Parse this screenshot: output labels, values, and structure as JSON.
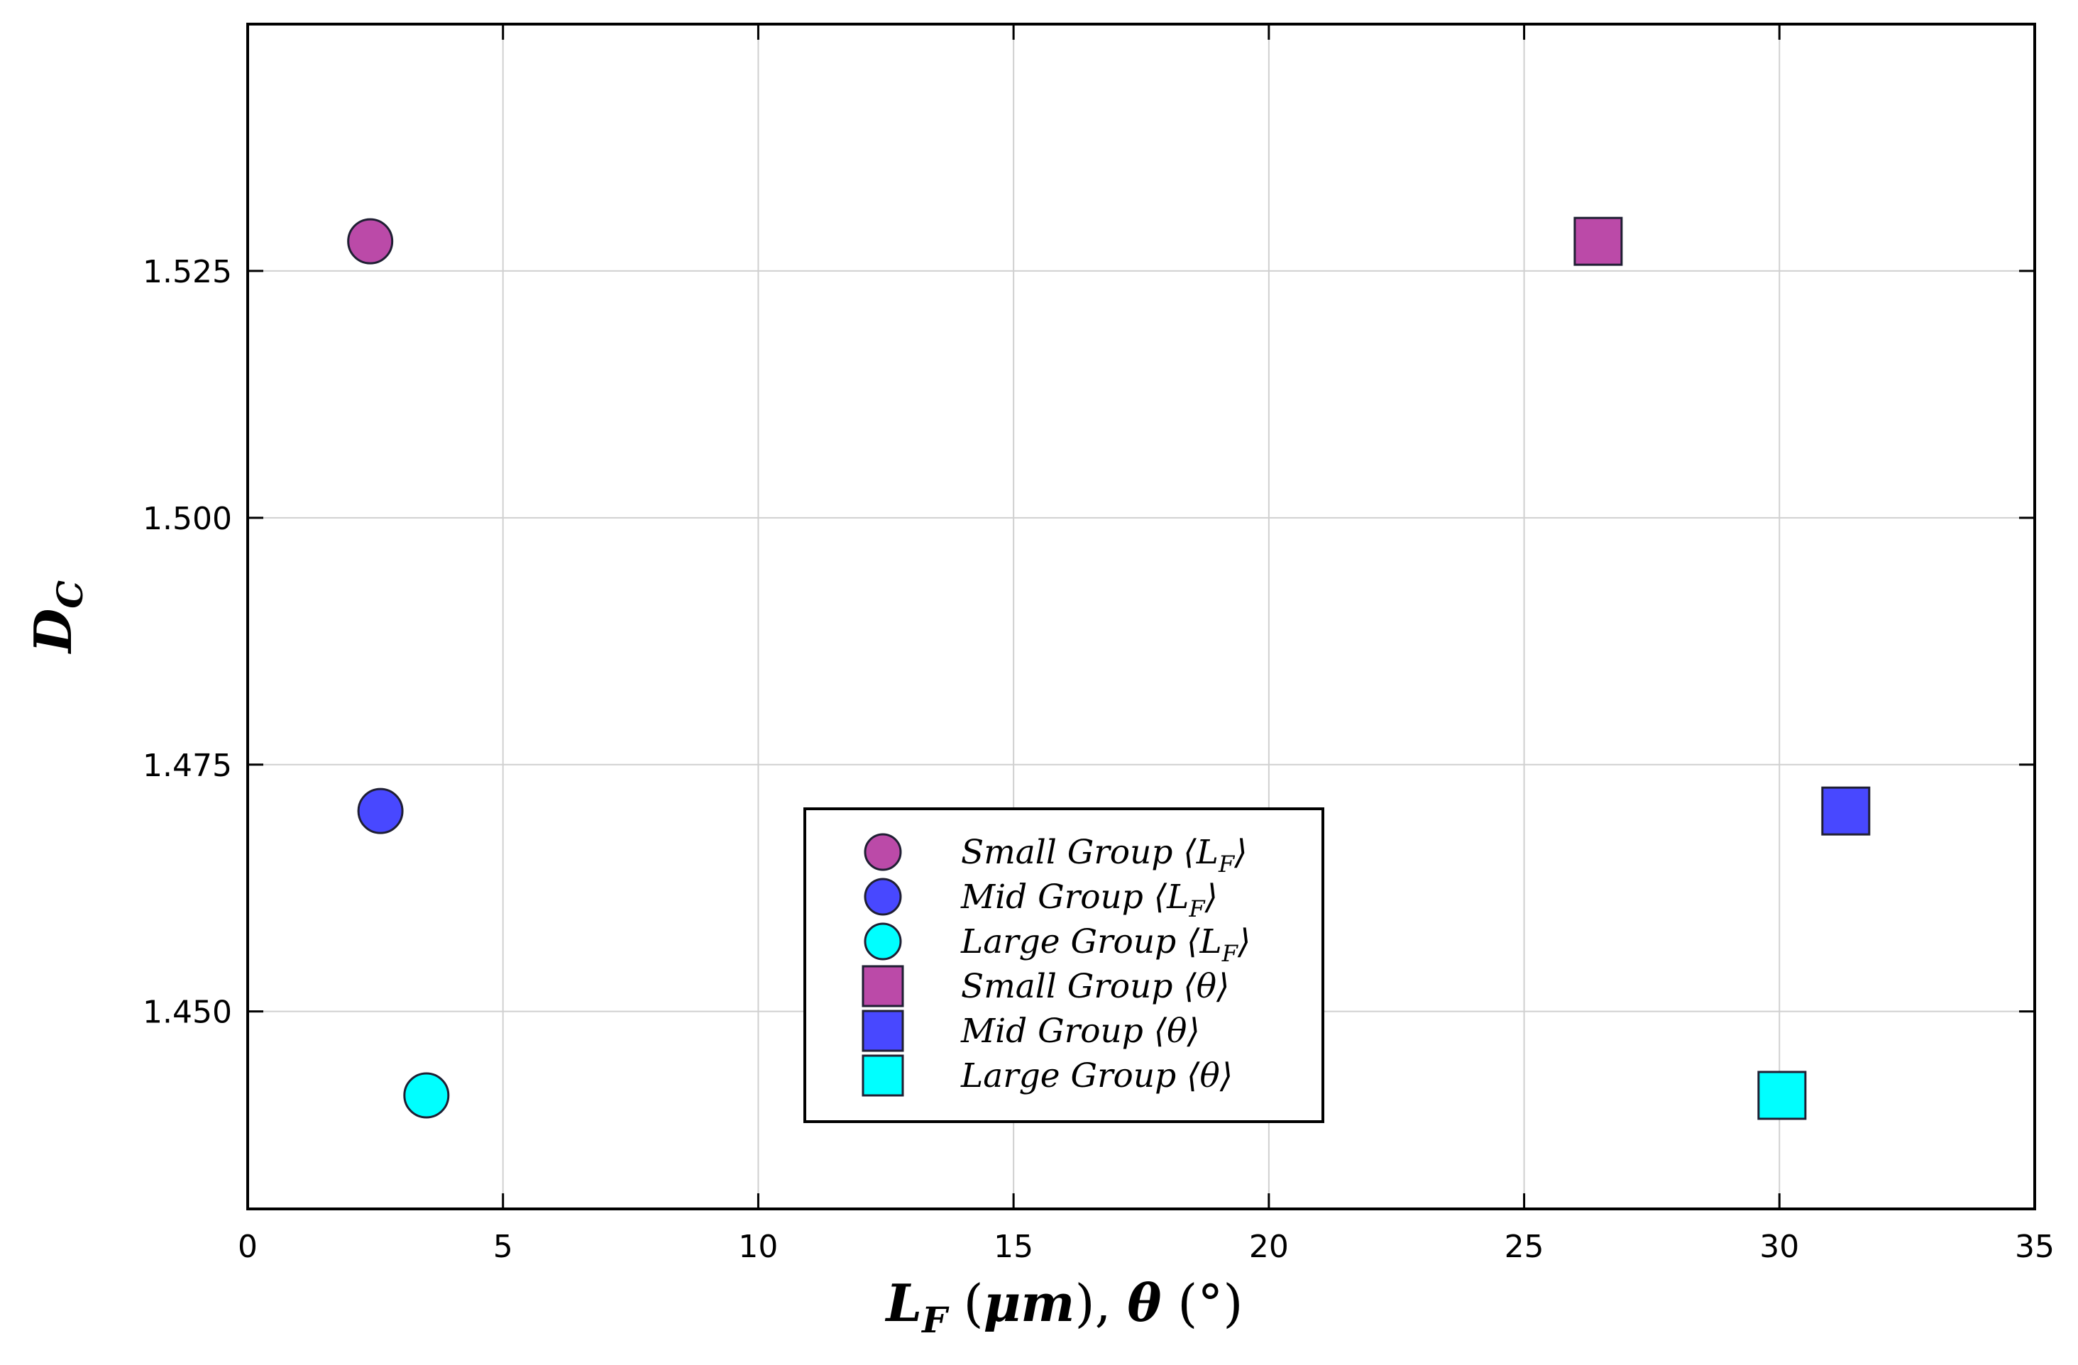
{
  "chart_data": {
    "type": "scatter",
    "title": "",
    "xlabel": "L_F (μm),   θ (°)",
    "ylabel": "D_C",
    "xlim": [
      0,
      35
    ],
    "ylim": [
      1.43,
      1.55
    ],
    "x_ticks": [
      0,
      5,
      10,
      15,
      20,
      25,
      30,
      35
    ],
    "y_ticks": [
      1.45,
      1.475,
      1.5,
      1.525
    ],
    "x_tick_labels": [
      "0",
      "5",
      "10",
      "15",
      "20",
      "25",
      "30",
      "35"
    ],
    "y_tick_labels": [
      "1.450",
      "1.475",
      "1.500",
      "1.525"
    ],
    "grid": true,
    "legend_position": "bottom-center",
    "series": [
      {
        "name": "Small Group",
        "stat": "L_F",
        "marker": "circle",
        "color": "#bb4aa8",
        "points": [
          {
            "x": 2.4,
            "y": 1.528
          }
        ]
      },
      {
        "name": "Mid Group",
        "stat": "L_F",
        "marker": "circle",
        "color": "#4848ff",
        "points": [
          {
            "x": 2.6,
            "y": 1.4703
          }
        ]
      },
      {
        "name": "Large Group",
        "stat": "L_F",
        "marker": "circle",
        "color": "#00ffff",
        "points": [
          {
            "x": 3.5,
            "y": 1.4415
          }
        ]
      },
      {
        "name": "Small Group",
        "stat": "θ",
        "marker": "square",
        "color": "#bb4aa8",
        "points": [
          {
            "x": 26.45,
            "y": 1.528
          }
        ]
      },
      {
        "name": "Mid Group",
        "stat": "θ",
        "marker": "square",
        "color": "#4848ff",
        "points": [
          {
            "x": 31.3,
            "y": 1.4703
          }
        ]
      },
      {
        "name": "Large Group",
        "stat": "θ",
        "marker": "square",
        "color": "#00ffff",
        "points": [
          {
            "x": 30.05,
            "y": 1.4415
          }
        ]
      }
    ]
  }
}
